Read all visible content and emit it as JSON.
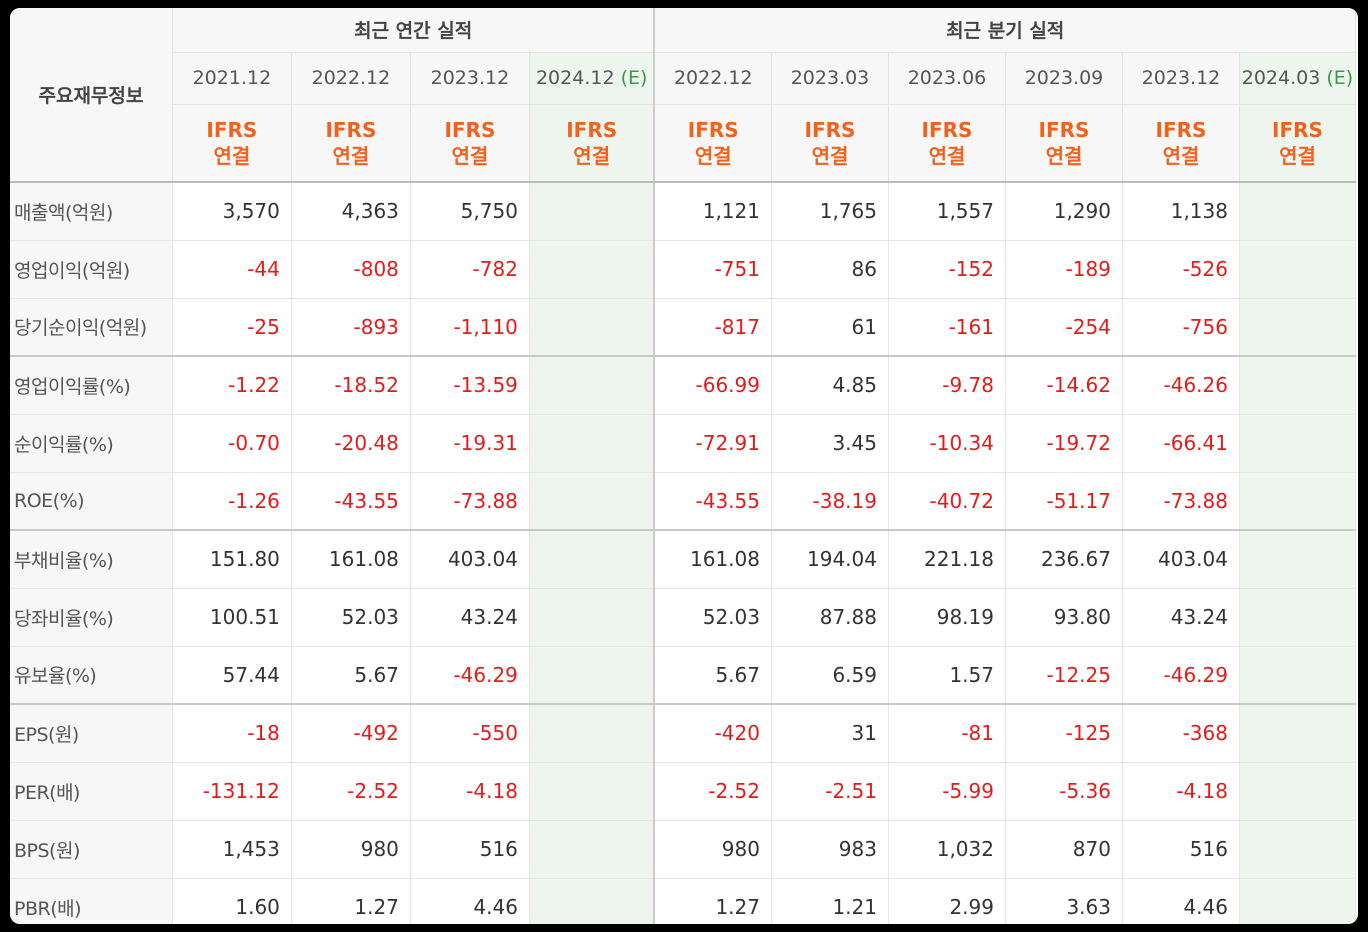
{
  "header": {
    "row_label": "주요재무정보",
    "annual_group": "최근 연간 실적",
    "quarter_group": "최근 분기 실적",
    "estimate_mark": "(E)",
    "ifrs_line1": "IFRS",
    "ifrs_line2": "연결",
    "annual_periods": [
      "2021.12",
      "2022.12",
      "2023.12",
      "2024.12"
    ],
    "quarter_periods": [
      "2022.12",
      "2023.03",
      "2023.06",
      "2023.09",
      "2023.12",
      "2024.03"
    ]
  },
  "rows": [
    {
      "label": "매출액(억원)",
      "annual": [
        "3,570",
        "4,363",
        "5,750",
        ""
      ],
      "quarter": [
        "1,121",
        "1,765",
        "1,557",
        "1,290",
        "1,138",
        ""
      ]
    },
    {
      "label": "영업이익(억원)",
      "annual": [
        "-44",
        "-808",
        "-782",
        ""
      ],
      "quarter": [
        "-751",
        "86",
        "-152",
        "-189",
        "-526",
        ""
      ]
    },
    {
      "label": "당기순이익(억원)",
      "annual": [
        "-25",
        "-893",
        "-1,110",
        ""
      ],
      "quarter": [
        "-817",
        "61",
        "-161",
        "-254",
        "-756",
        ""
      ]
    },
    {
      "label": "영업이익률(%)",
      "annual": [
        "-1.22",
        "-18.52",
        "-13.59",
        ""
      ],
      "quarter": [
        "-66.99",
        "4.85",
        "-9.78",
        "-14.62",
        "-46.26",
        ""
      ]
    },
    {
      "label": "순이익률(%)",
      "annual": [
        "-0.70",
        "-20.48",
        "-19.31",
        ""
      ],
      "quarter": [
        "-72.91",
        "3.45",
        "-10.34",
        "-19.72",
        "-66.41",
        ""
      ]
    },
    {
      "label": "ROE(%)",
      "annual": [
        "-1.26",
        "-43.55",
        "-73.88",
        ""
      ],
      "quarter": [
        "-43.55",
        "-38.19",
        "-40.72",
        "-51.17",
        "-73.88",
        ""
      ]
    },
    {
      "label": "부채비율(%)",
      "annual": [
        "151.80",
        "161.08",
        "403.04",
        ""
      ],
      "quarter": [
        "161.08",
        "194.04",
        "221.18",
        "236.67",
        "403.04",
        ""
      ]
    },
    {
      "label": "당좌비율(%)",
      "annual": [
        "100.51",
        "52.03",
        "43.24",
        ""
      ],
      "quarter": [
        "52.03",
        "87.88",
        "98.19",
        "93.80",
        "43.24",
        ""
      ]
    },
    {
      "label": "유보율(%)",
      "annual": [
        "57.44",
        "5.67",
        "-46.29",
        ""
      ],
      "quarter": [
        "5.67",
        "6.59",
        "1.57",
        "-12.25",
        "-46.29",
        ""
      ]
    },
    {
      "label": "EPS(원)",
      "annual": [
        "-18",
        "-492",
        "-550",
        ""
      ],
      "quarter": [
        "-420",
        "31",
        "-81",
        "-125",
        "-368",
        ""
      ]
    },
    {
      "label": "PER(배)",
      "annual": [
        "-131.12",
        "-2.52",
        "-4.18",
        ""
      ],
      "quarter": [
        "-2.52",
        "-2.51",
        "-5.99",
        "-5.36",
        "-4.18",
        ""
      ]
    },
    {
      "label": "BPS(원)",
      "annual": [
        "1,453",
        "980",
        "516",
        ""
      ],
      "quarter": [
        "980",
        "983",
        "1,032",
        "870",
        "516",
        ""
      ]
    },
    {
      "label": "PBR(배)",
      "annual": [
        "1.60",
        "1.27",
        "4.46",
        ""
      ],
      "quarter": [
        "1.27",
        "1.21",
        "2.99",
        "3.63",
        "4.46",
        ""
      ]
    }
  ],
  "colors": {
    "negative": "#e31b1b",
    "ifrs": "#f0631e",
    "estimate_bg": "#eef5ee",
    "estimate_mark": "#3a9a4a"
  }
}
